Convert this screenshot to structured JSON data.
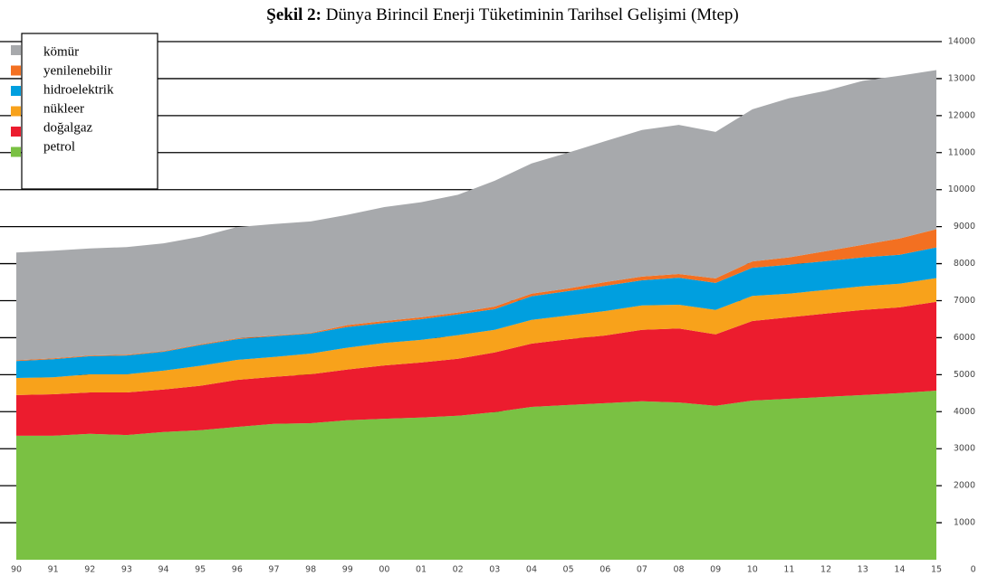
{
  "chart_data": {
    "type": "stacked_area",
    "figure_label": "Şekil 2:",
    "title": "Dünya Birincil Enerji Tüketiminin Tarihsel Gelişimi (Mtep)",
    "categories": [
      "90",
      "91",
      "92",
      "93",
      "94",
      "95",
      "96",
      "97",
      "98",
      "99",
      "00",
      "01",
      "02",
      "03",
      "04",
      "05",
      "06",
      "07",
      "08",
      "09",
      "10",
      "11",
      "12",
      "13",
      "14",
      "15",
      "0"
    ],
    "series": [
      {
        "name": "kömür",
        "color": "#a7a9ac",
        "values": [
          2910,
          2910,
          2890,
          2910,
          2910,
          2910,
          3010,
          3010,
          3010,
          2980,
          3080,
          3110,
          3180,
          3400,
          3520,
          3670,
          3810,
          3960,
          4030,
          3960,
          4110,
          4300,
          4330,
          4430,
          4400,
          4300,
          null
        ]
      },
      {
        "name": "yenilenebilir",
        "color": "#f37021",
        "values": [
          20,
          20,
          20,
          20,
          20,
          20,
          20,
          20,
          20,
          50,
          50,
          50,
          50,
          70,
          70,
          70,
          100,
          100,
          100,
          120,
          170,
          200,
          270,
          340,
          440,
          490,
          null
        ]
      },
      {
        "name": "hidroelektrik",
        "color": "#009fdf",
        "values": [
          460,
          490,
          490,
          510,
          510,
          560,
          560,
          560,
          540,
          560,
          540,
          560,
          560,
          560,
          640,
          660,
          680,
          680,
          730,
          730,
          760,
          780,
          780,
          780,
          780,
          830,
          null
        ]
      },
      {
        "name": "nükleer",
        "color": "#f8a21b",
        "values": [
          460,
          460,
          490,
          490,
          510,
          540,
          540,
          540,
          560,
          590,
          610,
          610,
          640,
          610,
          640,
          640,
          660,
          660,
          640,
          660,
          680,
          640,
          640,
          640,
          640,
          640,
          null
        ]
      },
      {
        "name": "doğalgaz",
        "color": "#ec1c2e",
        "values": [
          1100,
          1120,
          1120,
          1150,
          1150,
          1200,
          1270,
          1270,
          1320,
          1370,
          1440,
          1490,
          1540,
          1610,
          1710,
          1780,
          1830,
          1930,
          2000,
          1930,
          2150,
          2200,
          2250,
          2300,
          2320,
          2400,
          null
        ]
      },
      {
        "name": "petrol",
        "color": "#7ac143",
        "values": [
          3350,
          3350,
          3400,
          3370,
          3450,
          3500,
          3590,
          3670,
          3690,
          3770,
          3810,
          3840,
          3890,
          3990,
          4130,
          4180,
          4230,
          4280,
          4250,
          4160,
          4300,
          4350,
          4400,
          4450,
          4500,
          4570,
          null
        ]
      }
    ],
    "ylim": [
      0,
      14000
    ],
    "yticks": [
      1000,
      2000,
      3000,
      4000,
      5000,
      6000,
      7000,
      8000,
      9000,
      10000,
      11000,
      12000,
      13000,
      14000
    ],
    "grid": true,
    "legend": "upper left"
  }
}
